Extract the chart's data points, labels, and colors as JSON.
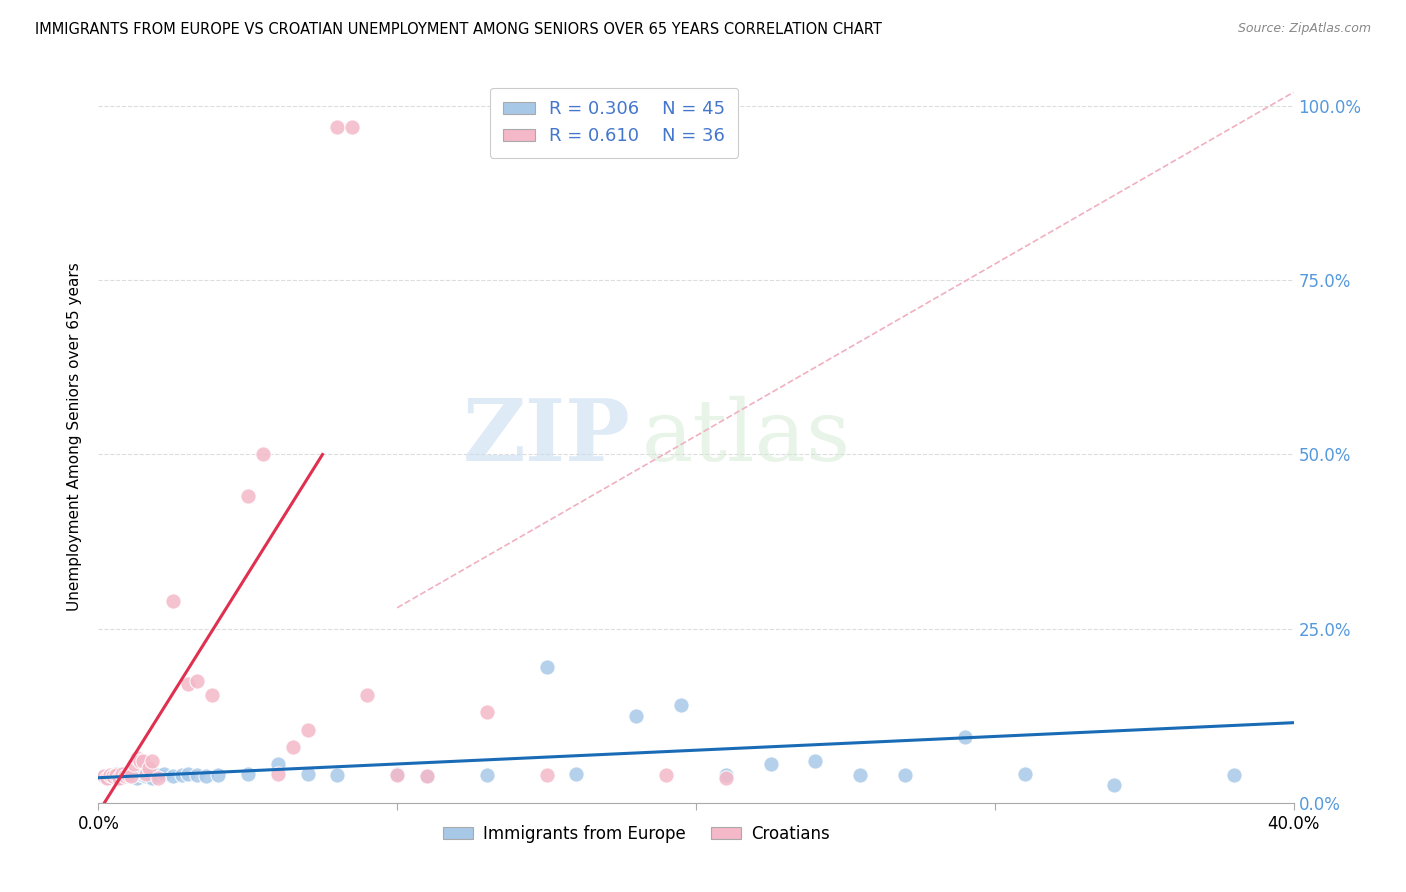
{
  "title": "IMMIGRANTS FROM EUROPE VS CROATIAN UNEMPLOYMENT AMONG SENIORS OVER 65 YEARS CORRELATION CHART",
  "source": "Source: ZipAtlas.com",
  "ylabel": "Unemployment Among Seniors over 65 years",
  "xlim": [
    0.0,
    0.4
  ],
  "ylim": [
    0.0,
    1.05
  ],
  "yticks": [
    0.0,
    0.25,
    0.5,
    0.75,
    1.0
  ],
  "ytick_labels_right": [
    "0.0%",
    "25.0%",
    "50.0%",
    "75.0%",
    "100.0%"
  ],
  "xticks": [
    0.0,
    0.1,
    0.2,
    0.3,
    0.4
  ],
  "xtick_labels": [
    "0.0%",
    "",
    "",
    "",
    "40.0%"
  ],
  "blue_color": "#a8c8e8",
  "pink_color": "#f4b8c8",
  "blue_line_color": "#1a6bb5",
  "pink_line_color": "#e03050",
  "dashed_line_color": "#f0b0c0",
  "right_axis_color": "#5599dd",
  "legend_text_color": "#4477cc",
  "R_blue": 0.306,
  "N_blue": 45,
  "R_pink": 0.61,
  "N_pink": 36,
  "watermark_zip": "ZIP",
  "watermark_atlas": "atlas",
  "blue_scatter_x": [
    0.002,
    0.003,
    0.004,
    0.005,
    0.006,
    0.007,
    0.008,
    0.009,
    0.01,
    0.011,
    0.012,
    0.013,
    0.014,
    0.015,
    0.016,
    0.017,
    0.018,
    0.02,
    0.022,
    0.025,
    0.028,
    0.03,
    0.033,
    0.036,
    0.04,
    0.05,
    0.06,
    0.07,
    0.08,
    0.1,
    0.11,
    0.13,
    0.15,
    0.16,
    0.18,
    0.195,
    0.21,
    0.225,
    0.24,
    0.255,
    0.27,
    0.29,
    0.31,
    0.34,
    0.38
  ],
  "blue_scatter_y": [
    0.038,
    0.035,
    0.04,
    0.038,
    0.042,
    0.036,
    0.04,
    0.038,
    0.042,
    0.038,
    0.04,
    0.036,
    0.042,
    0.04,
    0.038,
    0.04,
    0.036,
    0.04,
    0.042,
    0.038,
    0.04,
    0.042,
    0.04,
    0.038,
    0.04,
    0.042,
    0.055,
    0.042,
    0.04,
    0.042,
    0.038,
    0.04,
    0.195,
    0.042,
    0.125,
    0.14,
    0.04,
    0.055,
    0.06,
    0.04,
    0.04,
    0.095,
    0.042,
    0.025,
    0.04
  ],
  "pink_scatter_x": [
    0.002,
    0.003,
    0.004,
    0.005,
    0.006,
    0.007,
    0.008,
    0.009,
    0.01,
    0.011,
    0.012,
    0.013,
    0.014,
    0.015,
    0.016,
    0.017,
    0.018,
    0.02,
    0.025,
    0.03,
    0.033,
    0.038,
    0.05,
    0.055,
    0.06,
    0.065,
    0.07,
    0.08,
    0.085,
    0.09,
    0.1,
    0.11,
    0.13,
    0.15,
    0.19,
    0.21
  ],
  "pink_scatter_y": [
    0.038,
    0.036,
    0.04,
    0.038,
    0.04,
    0.036,
    0.042,
    0.038,
    0.04,
    0.038,
    0.055,
    0.065,
    0.06,
    0.06,
    0.042,
    0.05,
    0.06,
    0.035,
    0.29,
    0.17,
    0.175,
    0.155,
    0.44,
    0.5,
    0.042,
    0.08,
    0.105,
    0.97,
    0.97,
    0.155,
    0.04,
    0.038,
    0.13,
    0.04,
    0.04,
    0.035
  ],
  "blue_trend_x": [
    0.0,
    0.4
  ],
  "blue_trend_y": [
    0.036,
    0.115
  ],
  "pink_trend_x": [
    0.002,
    0.075
  ],
  "pink_trend_y": [
    0.0,
    0.5
  ],
  "dashed_trend_x": [
    0.1,
    0.4
  ],
  "dashed_trend_y": [
    0.28,
    1.02
  ]
}
